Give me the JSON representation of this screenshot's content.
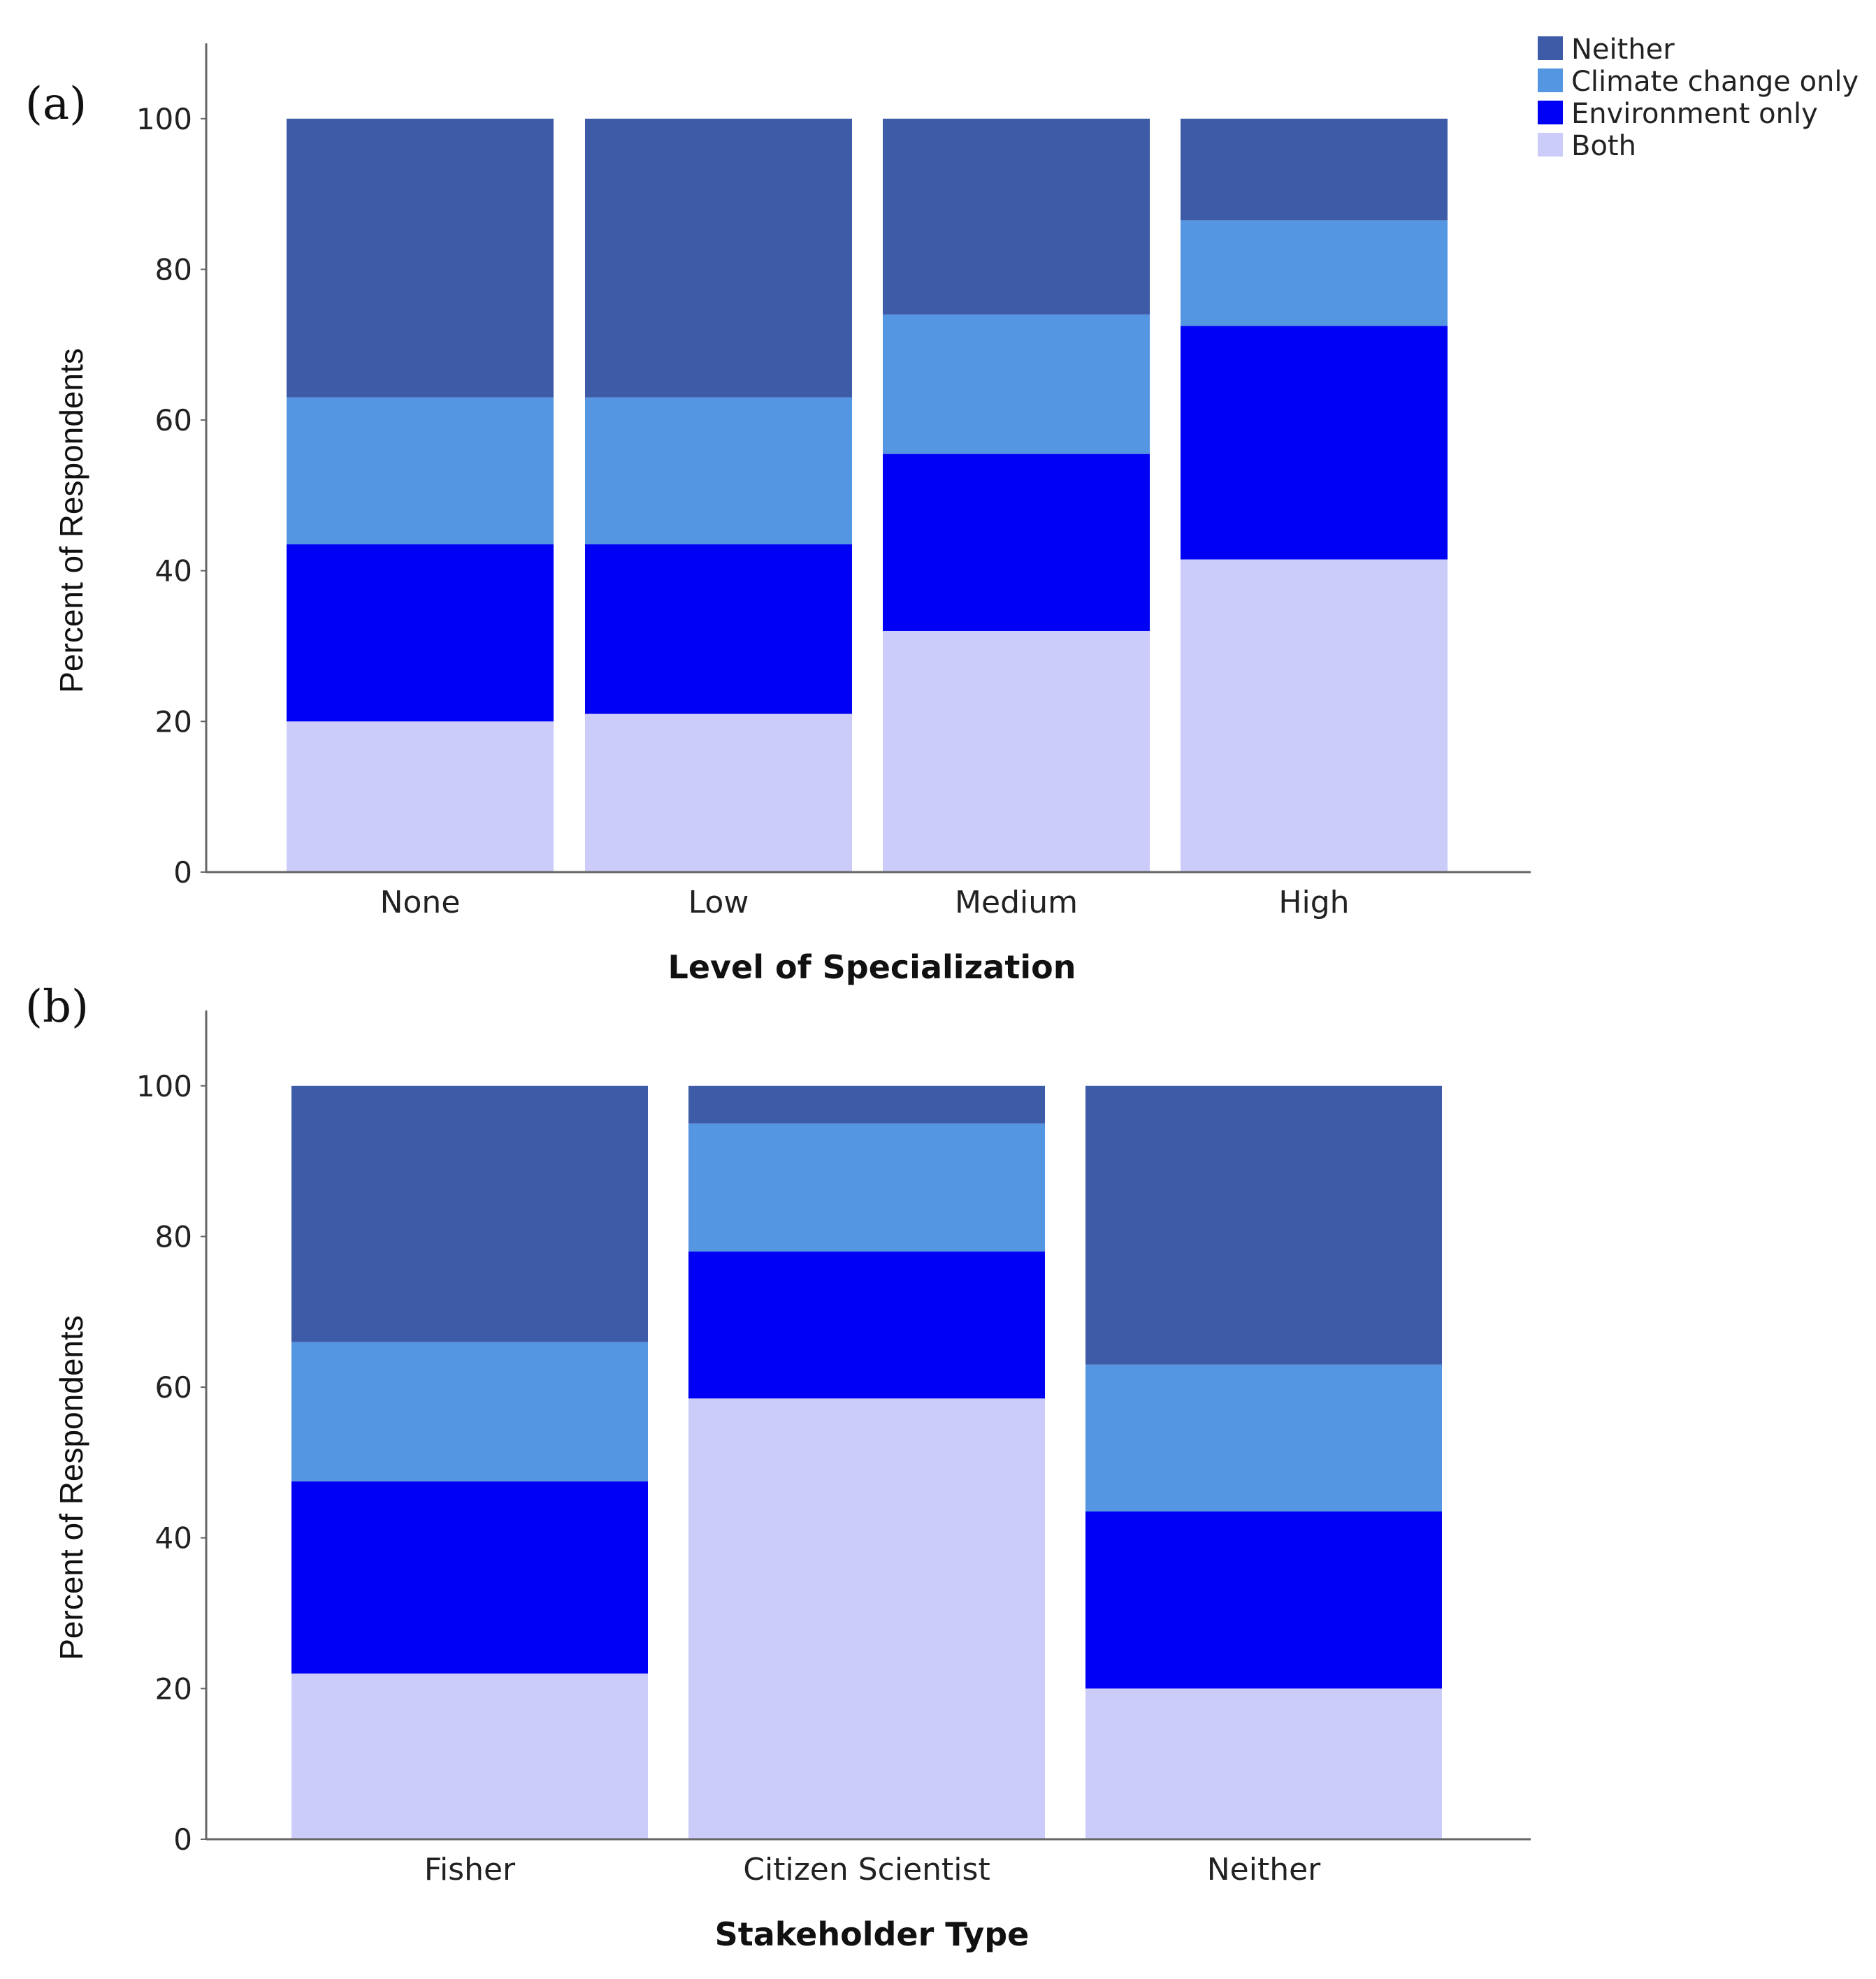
{
  "legend": [
    {
      "name": "Neither",
      "color": "#3e5ba8"
    },
    {
      "name": "Climate change only",
      "color": "#5596e3"
    },
    {
      "name": "Environment only",
      "color": "#0000f5"
    },
    {
      "name": "Both",
      "color": "#ccccfb"
    }
  ],
  "chart_data": [
    {
      "panel": "(a)",
      "type": "bar",
      "stacked": true,
      "xlabel": "Level of Specialization",
      "ylabel": "Percent of Respondents",
      "ylim": [
        0,
        110
      ],
      "yticks": [
        0,
        20,
        40,
        60,
        80,
        100
      ],
      "categories": [
        "None",
        "Low",
        "Medium",
        "High"
      ],
      "series": [
        {
          "name": "Both",
          "values": [
            20,
            21,
            32,
            41.5
          ]
        },
        {
          "name": "Environment only",
          "values": [
            23.5,
            22.5,
            23.5,
            31
          ]
        },
        {
          "name": "Climate change only",
          "values": [
            19.5,
            19.5,
            18.5,
            14
          ]
        },
        {
          "name": "Neither",
          "values": [
            37,
            37,
            26,
            13.5
          ]
        }
      ]
    },
    {
      "panel": "(b)",
      "type": "bar",
      "stacked": true,
      "xlabel": "Stakeholder Type",
      "ylabel": "Percent of Respondents",
      "ylim": [
        0,
        110
      ],
      "yticks": [
        0,
        20,
        40,
        60,
        80,
        100
      ],
      "categories": [
        "Fisher",
        "Citizen Scientist",
        "Neither"
      ],
      "series": [
        {
          "name": "Both",
          "values": [
            22,
            58.5,
            20
          ]
        },
        {
          "name": "Environment only",
          "values": [
            25.5,
            19.5,
            23.5
          ]
        },
        {
          "name": "Climate change only",
          "values": [
            18.5,
            17,
            19.5
          ]
        },
        {
          "name": "Neither",
          "values": [
            34,
            5,
            37
          ]
        }
      ]
    }
  ]
}
